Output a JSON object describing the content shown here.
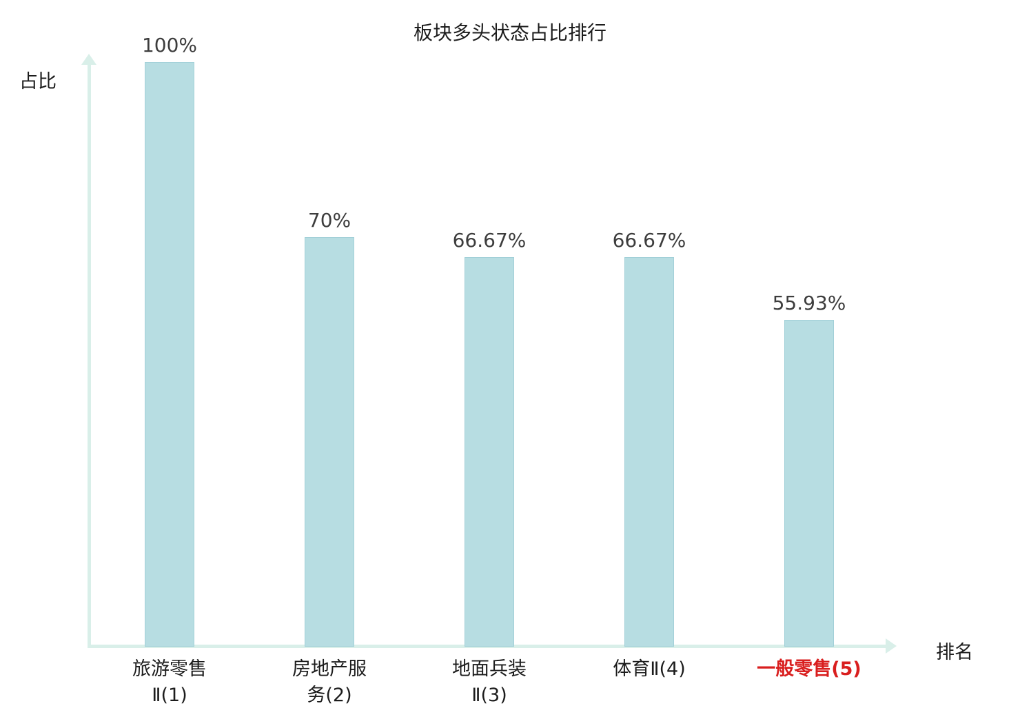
{
  "chart_data": {
    "type": "bar",
    "title": "板块多头状态占比排行",
    "xlabel": "排名",
    "ylabel": "占比",
    "ylim": [
      0,
      100
    ],
    "grid": false,
    "legend": "none",
    "categories": [
      "旅游零售Ⅱ(1)",
      "房地产服务(2)",
      "地面兵装Ⅱ(3)",
      "体育Ⅱ(4)",
      "一般零售(5)"
    ],
    "category_display": [
      "旅游零售\nⅡ(1)",
      "房地产服\n务(2)",
      "地面兵装\nⅡ(3)",
      "体育Ⅱ(4)",
      "一般零售(5)"
    ],
    "values": [
      100,
      70,
      66.67,
      66.67,
      55.93
    ],
    "value_labels": [
      "100%",
      "70%",
      "66.67%",
      "66.67%",
      "55.93%"
    ],
    "highlighted_category_index": 4,
    "colors": {
      "bar_fill": "#b7dde2",
      "bar_border": "#a2d0d8",
      "axis": "#d9efe9",
      "value_label": "#3d3d3d",
      "category_label": "#1c1c1c",
      "highlight_label": "#d91e1e",
      "background": "#ffffff"
    }
  }
}
